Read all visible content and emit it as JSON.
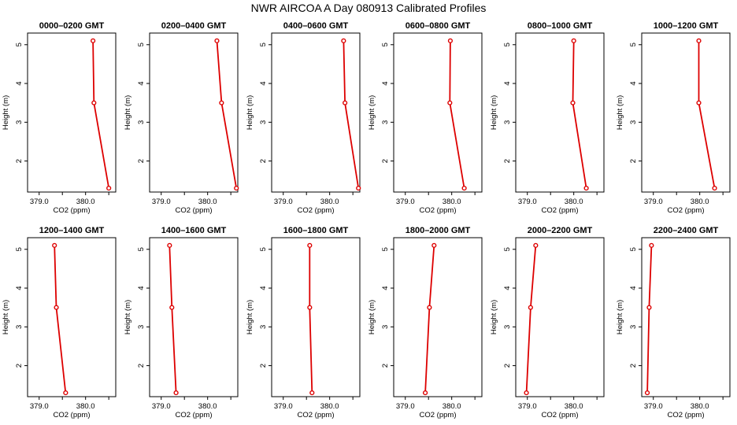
{
  "title": "NWR AIRCOA A  Day 080913  Calibrated Profiles",
  "colors": {
    "series": "#dd0000",
    "axis": "#000000",
    "background": "#ffffff"
  },
  "chart_data": [
    {
      "type": "line",
      "title": "0000–0200 GMT",
      "xlabel": "CO2 (ppm)",
      "ylabel": "Height (m)",
      "xlim": [
        378.75,
        380.65
      ],
      "ylim": [
        1.2,
        5.3
      ],
      "xticks": [
        379.0,
        380.0
      ],
      "xtick_labels": [
        "379.0",
        "380.0"
      ],
      "yticks": [
        2,
        3,
        4,
        5
      ],
      "ytick_labels": [
        "2",
        "3",
        "4",
        "5"
      ],
      "grid": false,
      "points": [
        {
          "x": 380.16,
          "y": 5.1
        },
        {
          "x": 380.18,
          "y": 3.5
        },
        {
          "x": 380.5,
          "y": 1.3
        }
      ]
    },
    {
      "type": "line",
      "title": "0200–0400 GMT",
      "xlabel": "CO2 (ppm)",
      "ylabel": "Height (m)",
      "xlim": [
        378.75,
        380.65
      ],
      "ylim": [
        1.2,
        5.3
      ],
      "xticks": [
        379.0,
        380.0
      ],
      "xtick_labels": [
        "379.0",
        "380.0"
      ],
      "yticks": [
        2,
        3,
        4,
        5
      ],
      "ytick_labels": [
        "2",
        "3",
        "4",
        "5"
      ],
      "grid": false,
      "points": [
        {
          "x": 380.2,
          "y": 5.1
        },
        {
          "x": 380.3,
          "y": 3.5
        },
        {
          "x": 380.62,
          "y": 1.3
        }
      ]
    },
    {
      "type": "line",
      "title": "0400–0600 GMT",
      "xlabel": "CO2 (ppm)",
      "ylabel": "Height (m)",
      "xlim": [
        378.75,
        380.65
      ],
      "ylim": [
        1.2,
        5.3
      ],
      "xticks": [
        379.0,
        380.0
      ],
      "xtick_labels": [
        "379.0",
        "380.0"
      ],
      "yticks": [
        2,
        3,
        4,
        5
      ],
      "ytick_labels": [
        "2",
        "3",
        "4",
        "5"
      ],
      "grid": false,
      "points": [
        {
          "x": 380.3,
          "y": 5.1
        },
        {
          "x": 380.33,
          "y": 3.5
        },
        {
          "x": 380.62,
          "y": 1.3
        }
      ]
    },
    {
      "type": "line",
      "title": "0600–0800 GMT",
      "xlabel": "CO2 (ppm)",
      "ylabel": "Height (m)",
      "xlim": [
        378.75,
        380.65
      ],
      "ylim": [
        1.2,
        5.3
      ],
      "xticks": [
        379.0,
        380.0
      ],
      "xtick_labels": [
        "379.0",
        "380.0"
      ],
      "yticks": [
        2,
        3,
        4,
        5
      ],
      "ytick_labels": [
        "2",
        "3",
        "4",
        "5"
      ],
      "grid": false,
      "points": [
        {
          "x": 379.97,
          "y": 5.1
        },
        {
          "x": 379.96,
          "y": 3.5
        },
        {
          "x": 380.27,
          "y": 1.3
        }
      ]
    },
    {
      "type": "line",
      "title": "0800–1000 GMT",
      "xlabel": "CO2 (ppm)",
      "ylabel": "Height (m)",
      "xlim": [
        378.75,
        380.65
      ],
      "ylim": [
        1.2,
        5.3
      ],
      "xticks": [
        379.0,
        380.0
      ],
      "xtick_labels": [
        "379.0",
        "380.0"
      ],
      "yticks": [
        2,
        3,
        4,
        5
      ],
      "ytick_labels": [
        "2",
        "3",
        "4",
        "5"
      ],
      "grid": false,
      "points": [
        {
          "x": 380.0,
          "y": 5.1
        },
        {
          "x": 379.98,
          "y": 3.5
        },
        {
          "x": 380.27,
          "y": 1.3
        }
      ]
    },
    {
      "type": "line",
      "title": "1000–1200 GMT",
      "xlabel": "CO2 (ppm)",
      "ylabel": "Height (m)",
      "xlim": [
        378.75,
        380.65
      ],
      "ylim": [
        1.2,
        5.3
      ],
      "xticks": [
        379.0,
        380.0
      ],
      "xtick_labels": [
        "379.0",
        "380.0"
      ],
      "yticks": [
        2,
        3,
        4,
        5
      ],
      "ytick_labels": [
        "2",
        "3",
        "4",
        "5"
      ],
      "grid": false,
      "points": [
        {
          "x": 379.98,
          "y": 5.1
        },
        {
          "x": 379.98,
          "y": 3.5
        },
        {
          "x": 380.32,
          "y": 1.3
        }
      ]
    },
    {
      "type": "line",
      "title": "1200–1400 GMT",
      "xlabel": "CO2 (ppm)",
      "ylabel": "Height (m)",
      "xlim": [
        378.75,
        380.65
      ],
      "ylim": [
        1.2,
        5.3
      ],
      "xticks": [
        379.0,
        380.0
      ],
      "xtick_labels": [
        "379.0",
        "380.0"
      ],
      "yticks": [
        2,
        3,
        4,
        5
      ],
      "ytick_labels": [
        "2",
        "3",
        "4",
        "5"
      ],
      "grid": false,
      "points": [
        {
          "x": 379.33,
          "y": 5.1
        },
        {
          "x": 379.37,
          "y": 3.5
        },
        {
          "x": 379.57,
          "y": 1.3
        }
      ]
    },
    {
      "type": "line",
      "title": "1400–1600 GMT",
      "xlabel": "CO2 (ppm)",
      "ylabel": "Height (m)",
      "xlim": [
        378.75,
        380.65
      ],
      "ylim": [
        1.2,
        5.3
      ],
      "xticks": [
        379.0,
        380.0
      ],
      "xtick_labels": [
        "379.0",
        "380.0"
      ],
      "yticks": [
        2,
        3,
        4,
        5
      ],
      "ytick_labels": [
        "2",
        "3",
        "4",
        "5"
      ],
      "grid": false,
      "points": [
        {
          "x": 379.18,
          "y": 5.1
        },
        {
          "x": 379.23,
          "y": 3.5
        },
        {
          "x": 379.32,
          "y": 1.3
        }
      ]
    },
    {
      "type": "line",
      "title": "1600–1800 GMT",
      "xlabel": "CO2 (ppm)",
      "ylabel": "Height (m)",
      "xlim": [
        378.75,
        380.65
      ],
      "ylim": [
        1.2,
        5.3
      ],
      "xticks": [
        379.0,
        380.0
      ],
      "xtick_labels": [
        "379.0",
        "380.0"
      ],
      "yticks": [
        2,
        3,
        4,
        5
      ],
      "ytick_labels": [
        "2",
        "3",
        "4",
        "5"
      ],
      "grid": false,
      "points": [
        {
          "x": 379.57,
          "y": 5.1
        },
        {
          "x": 379.57,
          "y": 3.5
        },
        {
          "x": 379.62,
          "y": 1.3
        }
      ]
    },
    {
      "type": "line",
      "title": "1800–2000 GMT",
      "xlabel": "CO2 (ppm)",
      "ylabel": "Height (m)",
      "xlim": [
        378.75,
        380.65
      ],
      "ylim": [
        1.2,
        5.3
      ],
      "xticks": [
        379.0,
        380.0
      ],
      "xtick_labels": [
        "379.0",
        "380.0"
      ],
      "yticks": [
        2,
        3,
        4,
        5
      ],
      "ytick_labels": [
        "2",
        "3",
        "4",
        "5"
      ],
      "grid": false,
      "points": [
        {
          "x": 379.62,
          "y": 5.1
        },
        {
          "x": 379.52,
          "y": 3.5
        },
        {
          "x": 379.43,
          "y": 1.3
        }
      ]
    },
    {
      "type": "line",
      "title": "2000–2200 GMT",
      "xlabel": "CO2 (ppm)",
      "ylabel": "Height (m)",
      "xlim": [
        378.75,
        380.65
      ],
      "ylim": [
        1.2,
        5.3
      ],
      "xticks": [
        379.0,
        380.0
      ],
      "xtick_labels": [
        "379.0",
        "380.0"
      ],
      "yticks": [
        2,
        3,
        4,
        5
      ],
      "ytick_labels": [
        "2",
        "3",
        "4",
        "5"
      ],
      "grid": false,
      "points": [
        {
          "x": 379.18,
          "y": 5.1
        },
        {
          "x": 379.07,
          "y": 3.5
        },
        {
          "x": 378.98,
          "y": 1.3
        }
      ]
    },
    {
      "type": "line",
      "title": "2200–2400 GMT",
      "xlabel": "CO2 (ppm)",
      "ylabel": "Height (m)",
      "xlim": [
        378.75,
        380.65
      ],
      "ylim": [
        1.2,
        5.3
      ],
      "xticks": [
        379.0,
        380.0
      ],
      "xtick_labels": [
        "379.0",
        "380.0"
      ],
      "yticks": [
        2,
        3,
        4,
        5
      ],
      "ytick_labels": [
        "2",
        "3",
        "4",
        "5"
      ],
      "grid": false,
      "points": [
        {
          "x": 378.96,
          "y": 5.1
        },
        {
          "x": 378.91,
          "y": 3.5
        },
        {
          "x": 378.87,
          "y": 1.3
        }
      ]
    }
  ]
}
